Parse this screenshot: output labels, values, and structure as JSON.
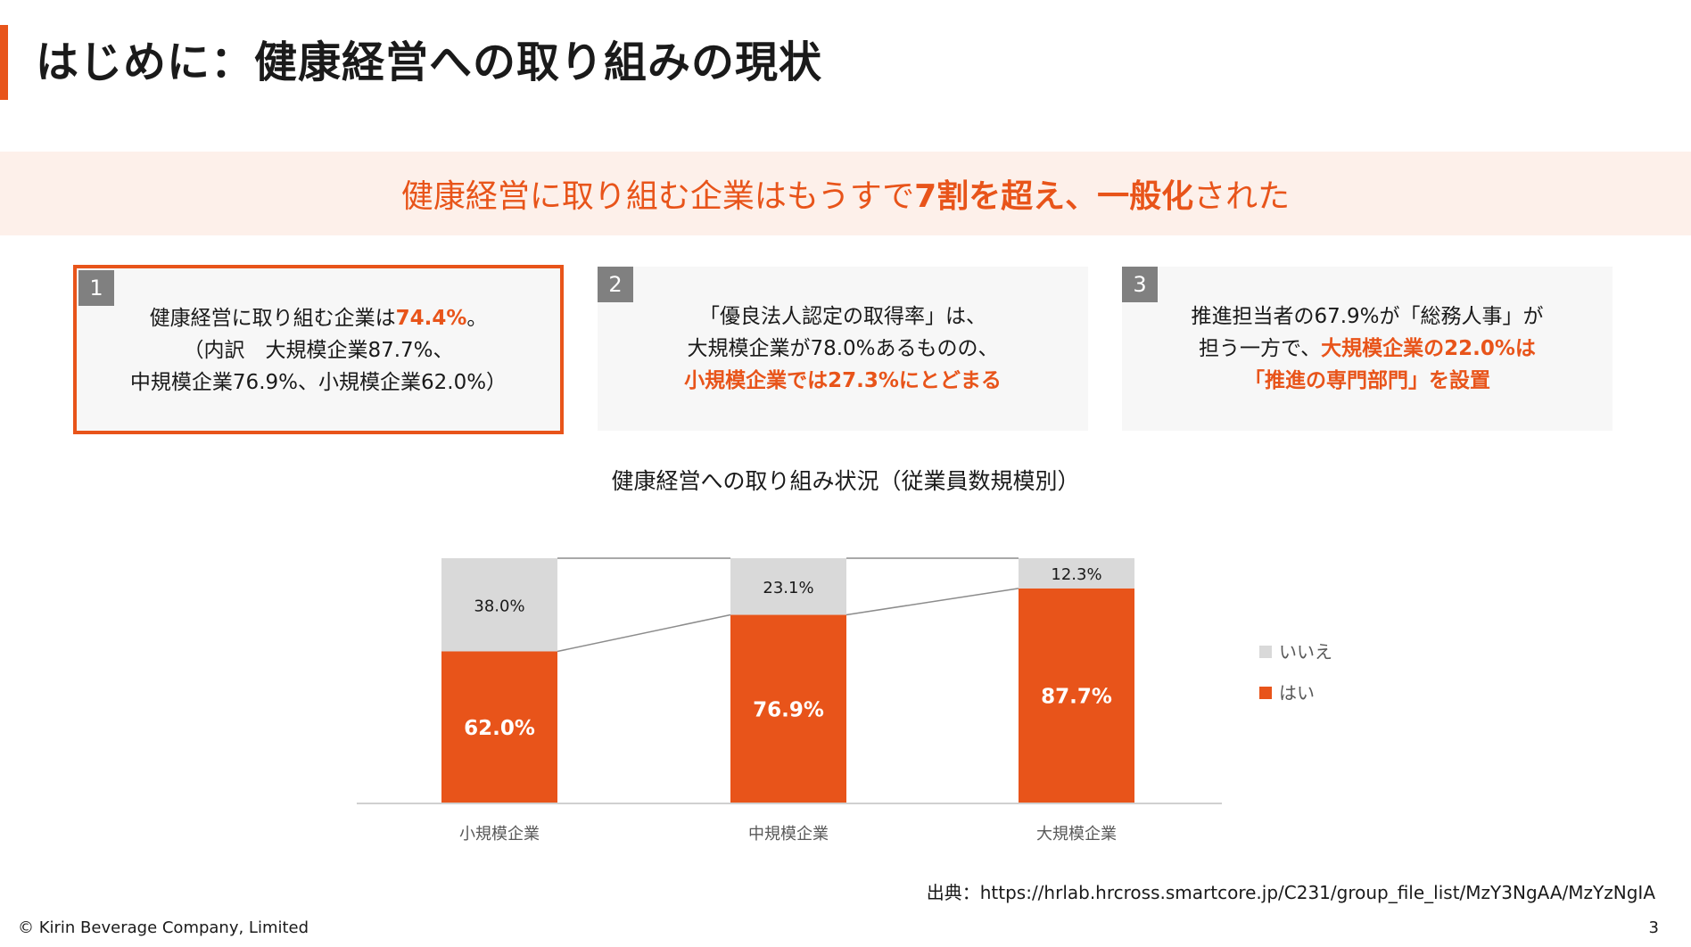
{
  "header": {
    "title": "はじめに：健康経営への取り組みの現状"
  },
  "banner": {
    "part1": "健康経営に取り組む企業はもうすで",
    "part2": "7割を超え、一般化",
    "part3": "された"
  },
  "cards": [
    {
      "num": "1",
      "line1_pre": "健康経営に取り組む企業は",
      "line1_em": "74.4%",
      "line1_post": "。",
      "line2": "（内訳　大規模企業87.7%、",
      "line3": "中規模企業76.9%、小規模企業62.0%）"
    },
    {
      "num": "2",
      "line1": "「優良法人認定の取得率」は、",
      "line2": "大規模企業が78.0%あるものの、",
      "line3": "小規模企業では27.3%にとどまる"
    },
    {
      "num": "3",
      "line1": "推進担当者の67.9%が「総務人事」が",
      "line2_pre": "担う一方で、",
      "line2_em": "大規模企業の22.0%は",
      "line3": "「推進の専門部門」を設置"
    }
  ],
  "chart_title": "健康経営への取り組み状況（従業員数規模別）",
  "chart_data": {
    "type": "bar",
    "stacked": true,
    "categories": [
      "小規模企業",
      "中規模企業",
      "大規模企業"
    ],
    "series": [
      {
        "name": "はい",
        "values": [
          62.0,
          76.9,
          87.7
        ],
        "labels": [
          "62.0%",
          "76.9%",
          "87.7%"
        ],
        "color": "#e8541a",
        "label_color": "#ffffff"
      },
      {
        "name": "いいえ",
        "values": [
          38.0,
          23.1,
          12.3
        ],
        "labels": [
          "38.0%",
          "23.1%",
          "12.3%"
        ],
        "color": "#d9d9d9",
        "label_color": "#1a1a1a"
      }
    ],
    "ylim": [
      0,
      100
    ],
    "legend": "right",
    "series_lines": true,
    "grid": false
  },
  "source": "出典：https://hrlab.hrcross.smartcore.jp/C231/group_file_list/MzY3NgAA/MzYzNgIA",
  "footer": {
    "copyright": "© Kirin Beverage Company, Limited",
    "page": "3"
  }
}
